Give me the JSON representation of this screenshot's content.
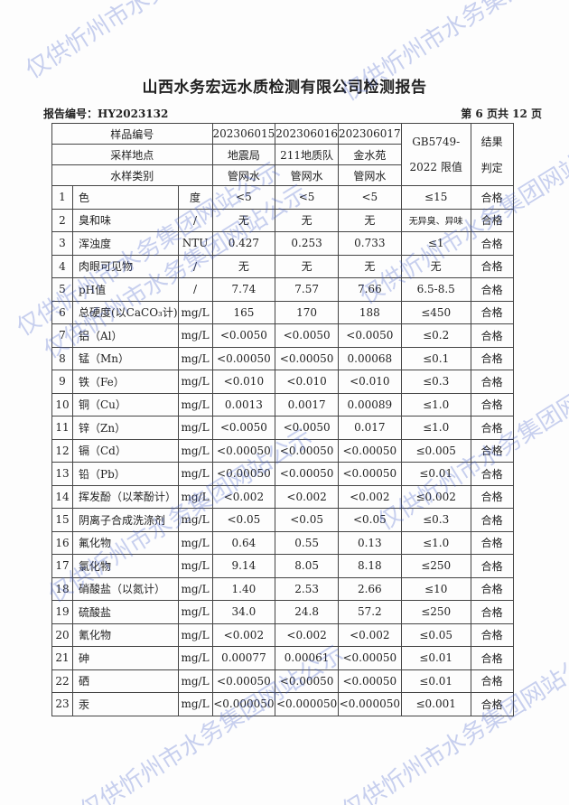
{
  "title": "山西水务宏远水质检测有限公司检测报告",
  "report_no": "报告编号：HY2023132",
  "page_info": "第 6 页共 12 页",
  "watermark": "仅供忻州市水务集团网站公示",
  "header": {
    "sample_no_label": "样品编号",
    "sample_nos": [
      "202306015",
      "202306016",
      "202306017"
    ],
    "site_label": "采样地点",
    "sites": [
      "地震局",
      "211地质队",
      "金水苑"
    ],
    "type_label": "水样类别",
    "types": [
      "管网水",
      "管网水",
      "管网水"
    ],
    "limit_label_1": "GB5749-",
    "limit_label_2": "2022 限值",
    "result_label_1": "结果",
    "result_label_2": "判定"
  },
  "rows": [
    {
      "no": "1",
      "item": "色",
      "unit": "度",
      "v": [
        "<5",
        "<5",
        "<5"
      ],
      "limit": "≤15",
      "result": "合格"
    },
    {
      "no": "2",
      "item": "臭和味",
      "unit": "/",
      "v": [
        "无",
        "无",
        "无"
      ],
      "limit": "无异臭、异味",
      "result": "合格"
    },
    {
      "no": "3",
      "item": "浑浊度",
      "unit": "NTU",
      "v": [
        "0.427",
        "0.253",
        "0.733"
      ],
      "limit": "≤1",
      "result": "合格"
    },
    {
      "no": "4",
      "item": "肉眼可见物",
      "unit": "/",
      "v": [
        "无",
        "无",
        "无"
      ],
      "limit": "无",
      "result": "合格"
    },
    {
      "no": "5",
      "item": "pH值",
      "unit": "/",
      "v": [
        "7.74",
        "7.57",
        "7.66"
      ],
      "limit": "6.5-8.5",
      "result": "合格"
    },
    {
      "no": "6",
      "item": "总硬度(以CaCO₃计)",
      "unit": "mg/L",
      "v": [
        "165",
        "170",
        "188"
      ],
      "limit": "≤450",
      "result": "合格"
    },
    {
      "no": "7",
      "item": "铝（Al）",
      "unit": "mg/L",
      "v": [
        "<0.0050",
        "<0.0050",
        "<0.0050"
      ],
      "limit": "≤0.2",
      "result": "合格"
    },
    {
      "no": "8",
      "item": "锰（Mn）",
      "unit": "mg/L",
      "v": [
        "<0.00050",
        "<0.00050",
        "0.00068"
      ],
      "limit": "≤0.1",
      "result": "合格"
    },
    {
      "no": "9",
      "item": "铁（Fe）",
      "unit": "mg/L",
      "v": [
        "<0.010",
        "<0.010",
        "<0.010"
      ],
      "limit": "≤0.3",
      "result": "合格"
    },
    {
      "no": "10",
      "item": "铜（Cu）",
      "unit": "mg/L",
      "v": [
        "0.0013",
        "0.0017",
        "0.00089"
      ],
      "limit": "≤1.0",
      "result": "合格"
    },
    {
      "no": "11",
      "item": "锌（Zn）",
      "unit": "mg/L",
      "v": [
        "<0.0050",
        "<0.0050",
        "0.017"
      ],
      "limit": "≤1.0",
      "result": "合格"
    },
    {
      "no": "12",
      "item": "镉（Cd）",
      "unit": "mg/L",
      "v": [
        "<0.00050",
        "<0.00050",
        "<0.00050"
      ],
      "limit": "≤0.005",
      "result": "合格"
    },
    {
      "no": "13",
      "item": "铅（Pb）",
      "unit": "mg/L",
      "v": [
        "<0.00050",
        "<0.00050",
        "<0.00050"
      ],
      "limit": "≤0.01",
      "result": "合格"
    },
    {
      "no": "14",
      "item": "挥发酚（以苯酚计）",
      "unit": "mg/L",
      "v": [
        "<0.002",
        "<0.002",
        "<0.002"
      ],
      "limit": "≤0.002",
      "result": "合格"
    },
    {
      "no": "15",
      "item": "阴离子合成洗涤剂",
      "unit": "mg/L",
      "v": [
        "<0.05",
        "<0.05",
        "<0.05"
      ],
      "limit": "≤0.3",
      "result": "合格"
    },
    {
      "no": "16",
      "item": "氟化物",
      "unit": "mg/L",
      "v": [
        "0.64",
        "0.55",
        "0.13"
      ],
      "limit": "≤1.0",
      "result": "合格"
    },
    {
      "no": "17",
      "item": "氯化物",
      "unit": "mg/L",
      "v": [
        "9.14",
        "8.05",
        "8.18"
      ],
      "limit": "≤250",
      "result": "合格"
    },
    {
      "no": "18",
      "item": "硝酸盐（以氮计）",
      "unit": "mg/L",
      "v": [
        "1.40",
        "2.53",
        "2.66"
      ],
      "limit": "≤10",
      "result": "合格"
    },
    {
      "no": "19",
      "item": "硫酸盐",
      "unit": "mg/L",
      "v": [
        "34.0",
        "24.8",
        "57.2"
      ],
      "limit": "≤250",
      "result": "合格"
    },
    {
      "no": "20",
      "item": "氰化物",
      "unit": "mg/L",
      "v": [
        "<0.002",
        "<0.002",
        "<0.002"
      ],
      "limit": "≤0.05",
      "result": "合格"
    },
    {
      "no": "21",
      "item": "砷",
      "unit": "mg/L",
      "v": [
        "0.00077",
        "0.00061",
        "<0.00050"
      ],
      "limit": "≤0.01",
      "result": "合格"
    },
    {
      "no": "22",
      "item": "硒",
      "unit": "mg/L",
      "v": [
        "<0.00050",
        "<0.00050",
        "<0.00050"
      ],
      "limit": "≤0.01",
      "result": "合格"
    },
    {
      "no": "23",
      "item": "汞",
      "unit": "mg/L",
      "v": [
        "<0.000050",
        "<0.000050",
        "<0.000050"
      ],
      "limit": "≤0.001",
      "result": "合格"
    }
  ]
}
